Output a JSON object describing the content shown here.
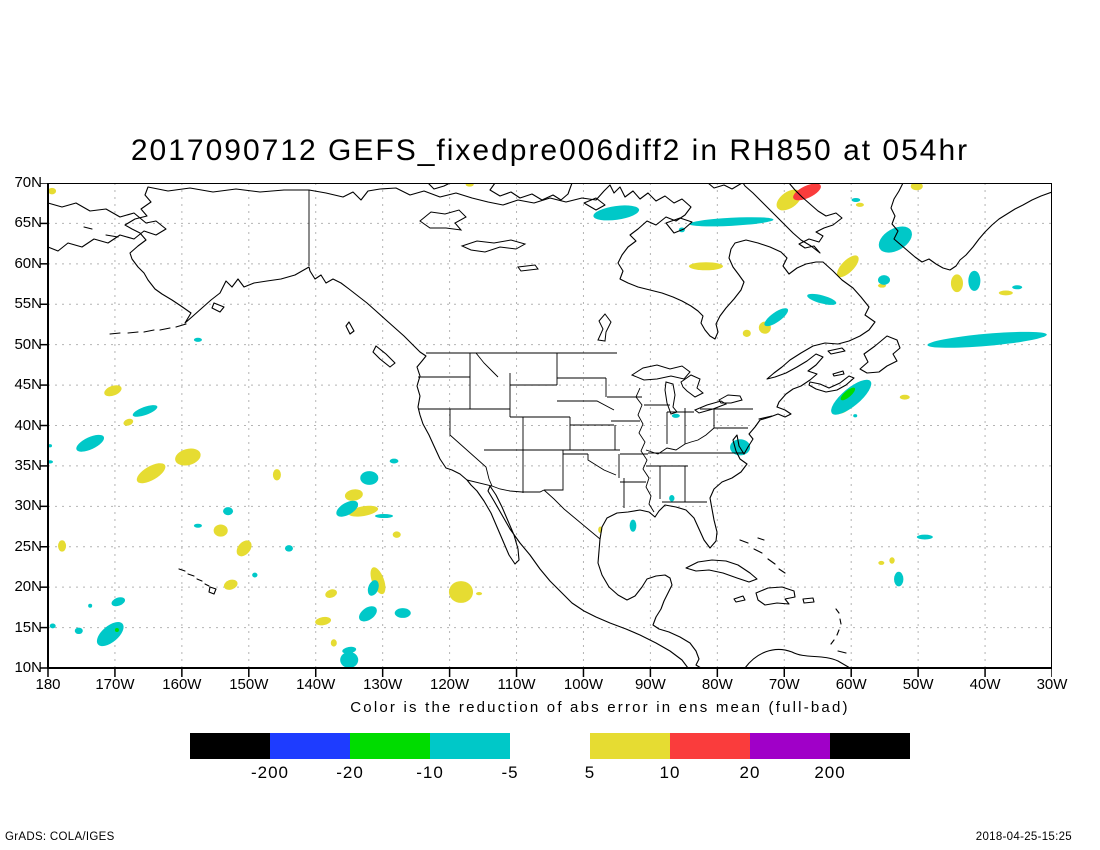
{
  "title": "2017090712 GEFS_fixedpre006diff2 in RH850 at 054hr",
  "caption": "Color is the reduction of abs error in ens mean (full-bad)",
  "footer": {
    "left": "GrADS: COLA/IGES",
    "right": "2018-04-25-15:25"
  },
  "map": {
    "lat_labels": [
      "70N",
      "65N",
      "60N",
      "55N",
      "50N",
      "45N",
      "40N",
      "35N",
      "30N",
      "25N",
      "20N",
      "15N",
      "10N"
    ],
    "lon_labels": [
      "180",
      "170W",
      "160W",
      "150W",
      "140W",
      "130W",
      "120W",
      "110W",
      "100W",
      "90W",
      "80W",
      "70W",
      "60W",
      "50W",
      "40W",
      "30W"
    ]
  },
  "colorbar": {
    "groups": [
      {
        "segments": [
          "black",
          "blue",
          "green",
          "cyan"
        ],
        "labels": [
          "-200",
          "-20",
          "-10",
          "-5"
        ],
        "label_anchor": "end"
      },
      {
        "segments": [
          "yellow",
          "red",
          "purple",
          "black"
        ],
        "labels": [
          "5",
          "10",
          "20",
          "200"
        ],
        "label_anchor": "start"
      }
    ]
  },
  "chart_data": {
    "type": "heatmap",
    "subtype": "filled-contour-map",
    "title": "2017090712 GEFS_fixedpre006diff2 in RH850 at 054hr",
    "caption": "Color is the reduction of abs error in ens mean (full-bad)",
    "projection": "latlon",
    "lon_range": [
      -180,
      -30
    ],
    "lat_range": [
      10,
      70
    ],
    "grid": {
      "lon_step_deg": 10,
      "lat_step_deg": 5,
      "style": "dotted"
    },
    "levels": [
      -200,
      -20,
      -10,
      -5,
      5,
      10,
      20,
      200
    ],
    "palette": {
      "black": "#000000",
      "blue": "#1e3cff",
      "green": "#00dc00",
      "cyan": "#00c8c8",
      "yellow": "#e6dc32",
      "red": "#fa3c3c",
      "purple": "#a000c8"
    },
    "regions_format": [
      "lon_deg",
      "lat_deg",
      "width_deg",
      "height_deg",
      "rotation_deg",
      "color"
    ],
    "regions": [
      [
        -179.4,
        69.0,
        1.2,
        0.8,
        0,
        "yellow"
      ],
      [
        -170.3,
        44.3,
        2.7,
        1.2,
        -20,
        "yellow"
      ],
      [
        -168.0,
        40.4,
        1.5,
        0.8,
        -20,
        "yellow"
      ],
      [
        -164.6,
        34.1,
        4.8,
        1.7,
        -30,
        "yellow"
      ],
      [
        -159.1,
        36.1,
        3.9,
        2.0,
        -15,
        "yellow"
      ],
      [
        -145.8,
        33.9,
        1.2,
        1.4,
        0,
        "yellow"
      ],
      [
        -154.2,
        27.0,
        2.1,
        1.5,
        0,
        "yellow"
      ],
      [
        -150.7,
        24.8,
        2.7,
        1.5,
        -50,
        "yellow"
      ],
      [
        -152.7,
        20.3,
        2.1,
        1.2,
        -20,
        "yellow"
      ],
      [
        -177.9,
        25.1,
        1.2,
        1.4,
        0,
        "yellow"
      ],
      [
        -134.3,
        31.4,
        2.7,
        1.4,
        -10,
        "yellow"
      ],
      [
        -132.9,
        29.4,
        4.5,
        1.2,
        -10,
        "yellow"
      ],
      [
        -127.9,
        26.5,
        1.2,
        0.8,
        0,
        "yellow"
      ],
      [
        -130.7,
        20.8,
        1.8,
        3.5,
        -20,
        "yellow"
      ],
      [
        -137.7,
        19.2,
        1.8,
        1.0,
        -20,
        "yellow"
      ],
      [
        -138.9,
        15.8,
        2.4,
        1.0,
        -10,
        "yellow"
      ],
      [
        -137.3,
        13.1,
        0.9,
        0.9,
        0,
        "yellow"
      ],
      [
        -118.3,
        19.4,
        3.6,
        2.7,
        0,
        "yellow"
      ],
      [
        -115.6,
        19.2,
        0.9,
        0.4,
        0,
        "yellow"
      ],
      [
        -97.5,
        27.1,
        0.6,
        0.8,
        0,
        "yellow"
      ],
      [
        -81.7,
        59.7,
        5.1,
        1.0,
        0,
        "yellow"
      ],
      [
        -69.3,
        67.9,
        4.2,
        2.0,
        -35,
        "yellow"
      ],
      [
        -50.2,
        69.6,
        1.8,
        1.0,
        0,
        "yellow"
      ],
      [
        -60.5,
        59.7,
        4.2,
        1.5,
        -45,
        "yellow"
      ],
      [
        -44.2,
        57.6,
        1.8,
        2.2,
        0,
        "yellow"
      ],
      [
        -36.9,
        56.4,
        2.1,
        0.6,
        0,
        "yellow"
      ],
      [
        -55.4,
        57.3,
        1.2,
        0.5,
        0,
        "yellow"
      ],
      [
        -72.9,
        52.1,
        1.8,
        1.5,
        -30,
        "yellow"
      ],
      [
        -60.5,
        42.5,
        3.6,
        1.0,
        -40,
        "yellow"
      ],
      [
        -52.0,
        43.5,
        1.5,
        0.6,
        0,
        "yellow"
      ],
      [
        -58.7,
        67.3,
        1.2,
        0.5,
        0,
        "yellow"
      ],
      [
        -55.5,
        23.0,
        0.9,
        0.5,
        0,
        "yellow"
      ],
      [
        -53.9,
        23.3,
        0.8,
        0.8,
        0,
        "yellow"
      ],
      [
        -117.0,
        69.8,
        1.2,
        0.5,
        0,
        "yellow"
      ],
      [
        -75.6,
        51.4,
        1.2,
        0.9,
        0,
        "yellow"
      ],
      [
        -173.7,
        37.8,
        4.5,
        1.5,
        -25,
        "cyan"
      ],
      [
        -165.5,
        41.8,
        3.9,
        1.0,
        -20,
        "cyan"
      ],
      [
        -157.6,
        50.6,
        1.2,
        0.5,
        0,
        "cyan"
      ],
      [
        -95.1,
        66.3,
        6.9,
        1.7,
        -8,
        "cyan"
      ],
      [
        -77.9,
        65.2,
        12.6,
        1.0,
        -3,
        "cyan"
      ],
      [
        -85.3,
        64.2,
        0.9,
        0.6,
        0,
        "cyan"
      ],
      [
        -53.4,
        63.0,
        5.4,
        2.7,
        -30,
        "cyan"
      ],
      [
        -55.1,
        58.0,
        1.8,
        1.2,
        0,
        "cyan"
      ],
      [
        -41.6,
        57.9,
        1.8,
        2.5,
        0,
        "cyan"
      ],
      [
        -35.2,
        57.1,
        1.5,
        0.5,
        0,
        "cyan"
      ],
      [
        -59.3,
        67.9,
        1.3,
        0.5,
        0,
        "cyan"
      ],
      [
        -64.4,
        55.6,
        4.5,
        1.0,
        15,
        "cyan"
      ],
      [
        -71.2,
        53.4,
        4.2,
        1.2,
        -35,
        "cyan"
      ],
      [
        -39.7,
        50.6,
        17.9,
        1.5,
        -5,
        "cyan"
      ],
      [
        -60.0,
        43.5,
        7.5,
        2.2,
        -40,
        "cyan"
      ],
      [
        -59.4,
        41.2,
        0.6,
        0.4,
        0,
        "cyan"
      ],
      [
        -76.6,
        37.3,
        3.0,
        2.0,
        0,
        "cyan"
      ],
      [
        -86.2,
        41.2,
        1.2,
        0.5,
        0,
        "cyan"
      ],
      [
        -86.8,
        31.0,
        0.8,
        0.8,
        0,
        "cyan"
      ],
      [
        -92.6,
        27.6,
        1.0,
        1.5,
        0,
        "cyan"
      ],
      [
        -49.0,
        26.2,
        2.4,
        0.6,
        0,
        "cyan"
      ],
      [
        -52.9,
        21.0,
        1.4,
        1.8,
        0,
        "cyan"
      ],
      [
        -128.3,
        35.6,
        1.3,
        0.6,
        0,
        "cyan"
      ],
      [
        -132.0,
        33.5,
        2.7,
        1.7,
        0,
        "cyan"
      ],
      [
        -135.3,
        29.7,
        3.6,
        1.5,
        -30,
        "cyan"
      ],
      [
        -129.8,
        28.8,
        2.7,
        0.5,
        0,
        "cyan"
      ],
      [
        -153.1,
        29.4,
        1.5,
        1.0,
        0,
        "cyan"
      ],
      [
        -157.6,
        27.6,
        1.2,
        0.5,
        0,
        "cyan"
      ],
      [
        -144.0,
        24.8,
        1.2,
        0.8,
        0,
        "cyan"
      ],
      [
        -149.1,
        21.5,
        0.8,
        0.6,
        0,
        "cyan"
      ],
      [
        -131.4,
        19.9,
        1.5,
        2.0,
        20,
        "cyan"
      ],
      [
        -132.2,
        16.7,
        3.0,
        1.5,
        -35,
        "cyan"
      ],
      [
        -127.0,
        16.8,
        2.4,
        1.2,
        0,
        "cyan"
      ],
      [
        -135.0,
        12.2,
        2.1,
        0.8,
        -10,
        "cyan"
      ],
      [
        -135.0,
        11.0,
        2.7,
        2.0,
        0,
        "cyan"
      ],
      [
        -169.5,
        18.2,
        2.1,
        1.0,
        -20,
        "cyan"
      ],
      [
        -170.7,
        14.2,
        4.8,
        2.0,
        -40,
        "cyan"
      ],
      [
        -175.4,
        14.6,
        1.2,
        0.8,
        0,
        "cyan"
      ],
      [
        -173.7,
        17.7,
        0.6,
        0.5,
        0,
        "cyan"
      ],
      [
        -179.7,
        37.5,
        0.6,
        0.4,
        0,
        "cyan"
      ],
      [
        -179.7,
        35.5,
        0.9,
        0.4,
        0,
        "cyan"
      ],
      [
        -179.3,
        15.2,
        0.9,
        0.6,
        0,
        "cyan"
      ],
      [
        -66.6,
        68.9,
        4.5,
        1.5,
        -25,
        "red"
      ],
      [
        -60.5,
        43.9,
        2.7,
        0.8,
        -40,
        "green"
      ],
      [
        -169.7,
        14.7,
        0.6,
        0.5,
        0,
        "green"
      ]
    ]
  }
}
